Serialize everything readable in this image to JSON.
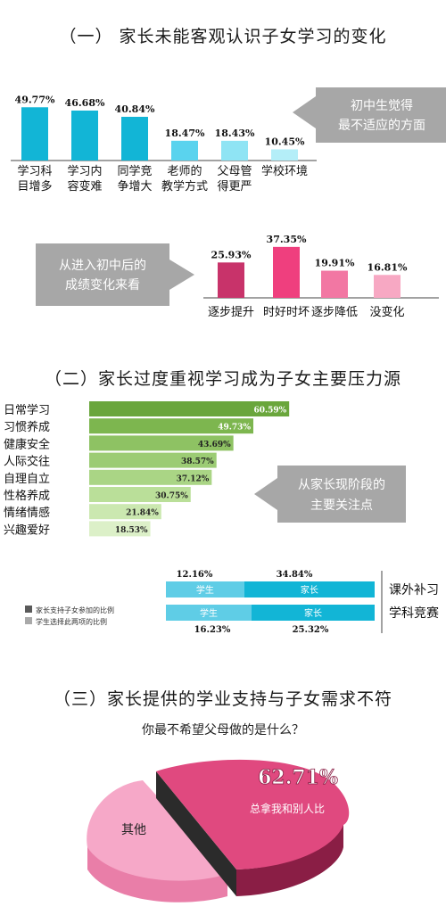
{
  "section1": {
    "title": "（一） 家长未能客观认识子女学习的变化",
    "callout": [
      "初中生觉得",
      "最不适应的方面"
    ]
  },
  "section1b": {
    "callout": [
      "从进入初中后的",
      "成绩变化来看"
    ]
  },
  "section2": {
    "title": "（二）家长过度重视学习成为子女主要压力源",
    "callout": [
      "从家长现阶段的",
      "主要关注点"
    ],
    "legend": [
      "家长支持子女参加的比例",
      "学生选择此两项的比例"
    ]
  },
  "section3": {
    "title": "（三）家长提供的学业支持与子女需求不符",
    "question": "你最不希望父母做的是什么？"
  },
  "colors": {
    "cyan": "#12b5d6",
    "pink_dark": "#c8336a",
    "pink_hot": "#ef3f7e",
    "green_dark": "#6aa63c",
    "callout_gray": "#a7a7a7"
  },
  "chart_data": [
    {
      "type": "bar",
      "categories": [
        [
          "学习科",
          "目增多"
        ],
        [
          "学习内",
          "容变难"
        ],
        [
          "同学竞",
          "争增大"
        ],
        [
          "老师的",
          "教学方式"
        ],
        [
          "父母管",
          "得更严"
        ],
        [
          "学校环境"
        ]
      ],
      "values": [
        49.77,
        46.68,
        40.84,
        18.47,
        18.43,
        10.45
      ],
      "labels": [
        "49.77%",
        "46.68%",
        "40.84%",
        "18.47%",
        "18.43%",
        "10.45%"
      ]
    },
    {
      "type": "bar",
      "categories": [
        "逐步提升",
        "时好时坏",
        "逐步降低",
        "没变化"
      ],
      "values": [
        25.93,
        37.35,
        19.91,
        16.81
      ],
      "labels": [
        "25.93%",
        "37.35%",
        "19.91%",
        "16.81%"
      ]
    },
    {
      "type": "bar",
      "orientation": "horizontal",
      "categories": [
        "日常学习",
        "习惯养成",
        "健康安全",
        "人际交往",
        "自理自立",
        "性格养成",
        "情绪情感",
        "兴趣爱好"
      ],
      "values": [
        60.59,
        49.73,
        43.69,
        38.57,
        37.12,
        30.75,
        21.84,
        18.53
      ],
      "labels": [
        "60.59%",
        "49.73%",
        "43.69%",
        "38.57%",
        "37.12%",
        "30.75%",
        "21.84%",
        "18.53%"
      ]
    },
    {
      "type": "bar",
      "orientation": "horizontal",
      "stacked": true,
      "categories": [
        "课外补习",
        "学科竞赛"
      ],
      "segment_labels": [
        "学生",
        "家长"
      ],
      "student": [
        12.16,
        16.23
      ],
      "parent": [
        34.84,
        25.32
      ],
      "student_labels": [
        "12.16%",
        "16.23%"
      ],
      "parent_labels": [
        "34.84%",
        "25.32%"
      ]
    },
    {
      "type": "pie",
      "values": [
        62.71,
        37.29
      ],
      "label_main": "62.71%",
      "label_main_text": "总拿我和别人比",
      "label_other": "其他"
    }
  ]
}
